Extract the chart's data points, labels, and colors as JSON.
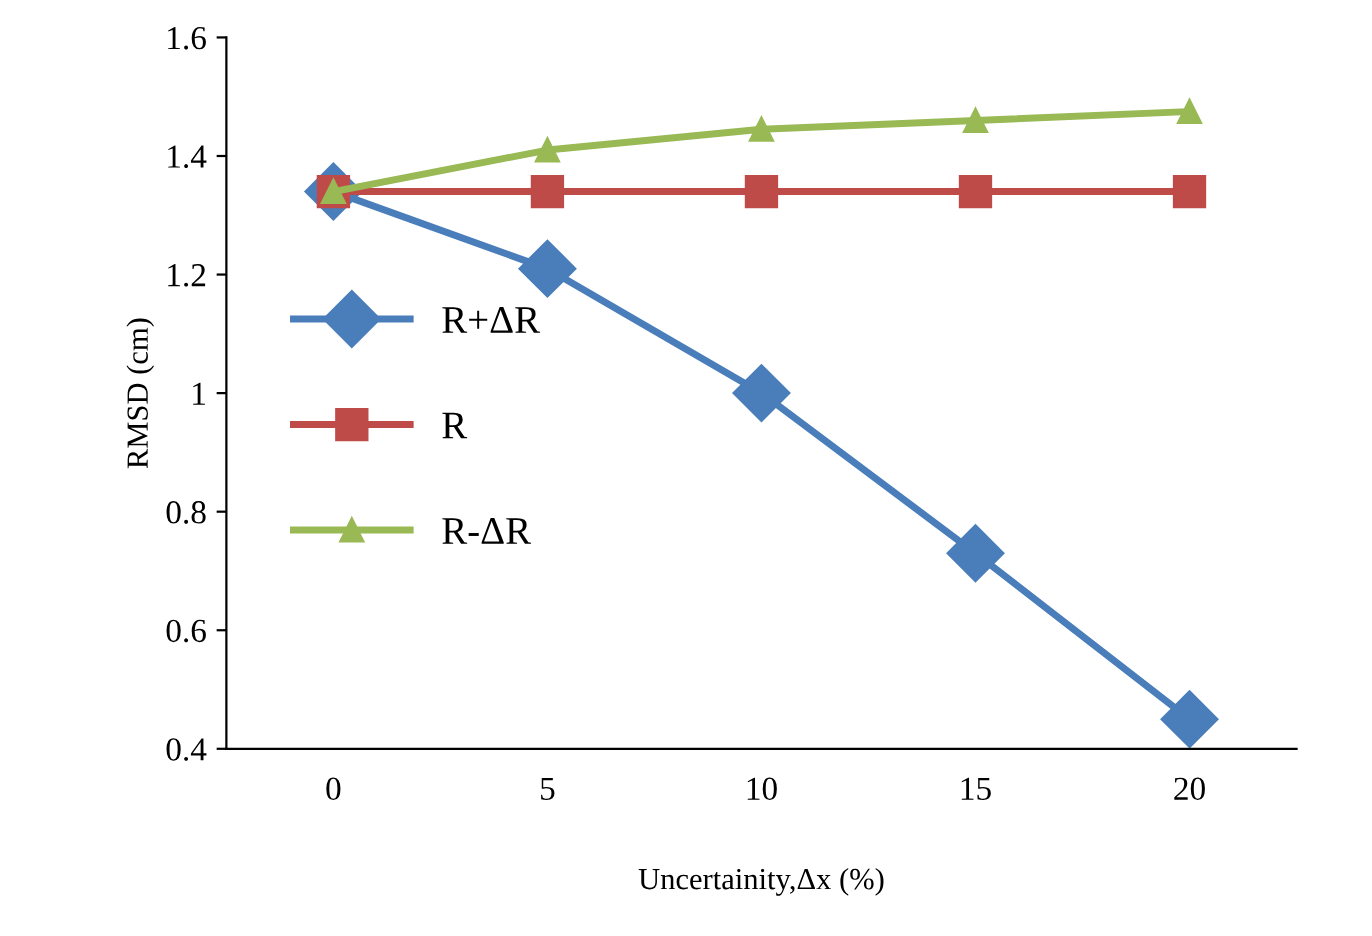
{
  "chart_data": {
    "type": "line",
    "xlabel": "Uncertainity,Δx (%)",
    "ylabel": "RMSD (cm)",
    "categories": [
      "0",
      "5",
      "10",
      "15",
      "20"
    ],
    "series": [
      {
        "name": "R+ΔR",
        "color": "#4a7ebb",
        "marker": "diamond",
        "values": [
          1.34,
          1.21,
          1.0,
          0.73,
          0.45
        ]
      },
      {
        "name": "R",
        "color": "#be4b48",
        "marker": "square",
        "values": [
          1.34,
          1.34,
          1.34,
          1.34,
          1.34
        ]
      },
      {
        "name": "R-ΔR",
        "color": "#98b954",
        "marker": "triangle",
        "values": [
          1.34,
          1.41,
          1.445,
          1.46,
          1.475
        ]
      }
    ],
    "ylim": [
      0.4,
      1.6
    ],
    "yticks": [
      0.4,
      0.6,
      0.8,
      1,
      1.2,
      1.4,
      1.6
    ],
    "grid": false,
    "legend": "left",
    "line_style": "solid"
  }
}
